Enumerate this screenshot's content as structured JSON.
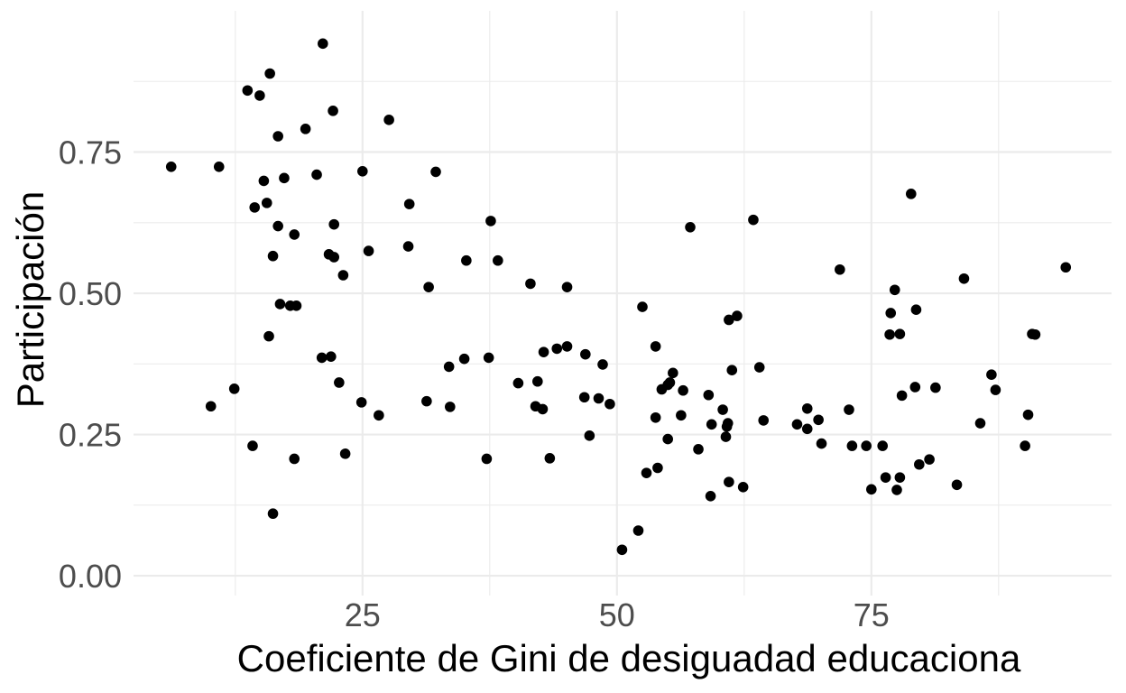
{
  "chart_data": {
    "type": "scatter",
    "title": "",
    "xlabel": "Coeficiente de Gini de desiguadad educaciona",
    "ylabel": "Participación",
    "xlim": [
      2.5,
      98.6
    ],
    "ylim": [
      -0.035,
      1.0
    ],
    "x_ticks": [
      {
        "value": 25,
        "label": "25"
      },
      {
        "value": 50,
        "label": "50"
      },
      {
        "value": 75,
        "label": "75"
      }
    ],
    "y_ticks": [
      {
        "value": 0.0,
        "label": "0.00"
      },
      {
        "value": 0.25,
        "label": "0.25"
      },
      {
        "value": 0.5,
        "label": "0.50"
      },
      {
        "value": 0.75,
        "label": "0.75"
      }
    ],
    "x_minor": [
      12.5,
      37.5,
      62.5,
      87.5
    ],
    "y_minor": [
      0.125,
      0.375,
      0.625,
      0.875
    ],
    "grid": true,
    "point_color": "#000000",
    "points": [
      [
        6.2,
        0.724
      ],
      [
        10.1,
        0.3
      ],
      [
        10.9,
        0.724
      ],
      [
        12.4,
        0.331
      ],
      [
        13.7,
        0.859
      ],
      [
        14.2,
        0.23
      ],
      [
        14.4,
        0.652
      ],
      [
        14.9,
        0.85
      ],
      [
        15.3,
        0.699
      ],
      [
        15.6,
        0.66
      ],
      [
        15.8,
        0.424
      ],
      [
        15.9,
        0.889
      ],
      [
        16.2,
        0.566
      ],
      [
        16.2,
        0.11
      ],
      [
        16.7,
        0.778
      ],
      [
        16.7,
        0.619
      ],
      [
        16.9,
        0.481
      ],
      [
        17.3,
        0.704
      ],
      [
        17.9,
        0.478
      ],
      [
        18.3,
        0.604
      ],
      [
        18.3,
        0.207
      ],
      [
        18.5,
        0.478
      ],
      [
        19.4,
        0.791
      ],
      [
        20.5,
        0.71
      ],
      [
        21.0,
        0.386
      ],
      [
        21.1,
        0.942
      ],
      [
        21.7,
        0.569
      ],
      [
        21.9,
        0.388
      ],
      [
        22.1,
        0.823
      ],
      [
        22.2,
        0.622
      ],
      [
        22.2,
        0.564
      ],
      [
        22.7,
        0.342
      ],
      [
        23.1,
        0.532
      ],
      [
        23.3,
        0.216
      ],
      [
        24.9,
        0.307
      ],
      [
        25.0,
        0.716
      ],
      [
        25.6,
        0.575
      ],
      [
        26.6,
        0.284
      ],
      [
        27.6,
        0.807
      ],
      [
        29.5,
        0.583
      ],
      [
        29.6,
        0.658
      ],
      [
        31.3,
        0.309
      ],
      [
        31.5,
        0.511
      ],
      [
        32.2,
        0.715
      ],
      [
        33.5,
        0.37
      ],
      [
        33.6,
        0.299
      ],
      [
        35.0,
        0.384
      ],
      [
        35.2,
        0.558
      ],
      [
        37.2,
        0.207
      ],
      [
        37.4,
        0.386
      ],
      [
        37.6,
        0.628
      ],
      [
        38.3,
        0.558
      ],
      [
        40.3,
        0.341
      ],
      [
        41.5,
        0.517
      ],
      [
        42.0,
        0.3
      ],
      [
        42.2,
        0.344
      ],
      [
        42.7,
        0.295
      ],
      [
        42.8,
        0.396
      ],
      [
        43.4,
        0.208
      ],
      [
        44.1,
        0.402
      ],
      [
        45.1,
        0.406
      ],
      [
        45.1,
        0.511
      ],
      [
        46.8,
        0.316
      ],
      [
        46.9,
        0.392
      ],
      [
        47.3,
        0.248
      ],
      [
        48.2,
        0.314
      ],
      [
        48.6,
        0.374
      ],
      [
        49.3,
        0.304
      ],
      [
        50.5,
        0.046
      ],
      [
        52.1,
        0.08
      ],
      [
        52.5,
        0.476
      ],
      [
        52.9,
        0.182
      ],
      [
        53.8,
        0.406
      ],
      [
        53.8,
        0.28
      ],
      [
        54.0,
        0.191
      ],
      [
        54.4,
        0.33
      ],
      [
        55.0,
        0.242
      ],
      [
        55.0,
        0.338
      ],
      [
        55.2,
        0.342
      ],
      [
        55.5,
        0.359
      ],
      [
        56.3,
        0.284
      ],
      [
        56.5,
        0.328
      ],
      [
        57.2,
        0.617
      ],
      [
        58.0,
        0.224
      ],
      [
        59.0,
        0.32
      ],
      [
        59.2,
        0.141
      ],
      [
        59.3,
        0.268
      ],
      [
        60.4,
        0.294
      ],
      [
        60.7,
        0.246
      ],
      [
        60.8,
        0.264
      ],
      [
        60.9,
        0.27
      ],
      [
        61.0,
        0.166
      ],
      [
        61.0,
        0.453
      ],
      [
        61.3,
        0.364
      ],
      [
        61.8,
        0.46
      ],
      [
        62.4,
        0.157
      ],
      [
        63.4,
        0.63
      ],
      [
        64.0,
        0.369
      ],
      [
        64.4,
        0.275
      ],
      [
        67.7,
        0.268
      ],
      [
        68.7,
        0.296
      ],
      [
        68.7,
        0.26
      ],
      [
        69.8,
        0.276
      ],
      [
        70.1,
        0.234
      ],
      [
        71.9,
        0.542
      ],
      [
        72.8,
        0.294
      ],
      [
        73.1,
        0.23
      ],
      [
        74.5,
        0.23
      ],
      [
        75.0,
        0.153
      ],
      [
        76.1,
        0.23
      ],
      [
        76.4,
        0.174
      ],
      [
        76.8,
        0.427
      ],
      [
        76.9,
        0.465
      ],
      [
        77.3,
        0.506
      ],
      [
        77.5,
        0.152
      ],
      [
        77.8,
        0.174
      ],
      [
        77.8,
        0.428
      ],
      [
        78.0,
        0.319
      ],
      [
        78.9,
        0.676
      ],
      [
        79.3,
        0.334
      ],
      [
        79.4,
        0.471
      ],
      [
        79.7,
        0.197
      ],
      [
        80.7,
        0.206
      ],
      [
        81.3,
        0.333
      ],
      [
        83.4,
        0.161
      ],
      [
        84.1,
        0.526
      ],
      [
        85.7,
        0.27
      ],
      [
        86.8,
        0.356
      ],
      [
        87.2,
        0.329
      ],
      [
        90.1,
        0.23
      ],
      [
        90.4,
        0.285
      ],
      [
        90.8,
        0.428
      ],
      [
        91.1,
        0.427
      ],
      [
        94.1,
        0.546
      ]
    ]
  }
}
